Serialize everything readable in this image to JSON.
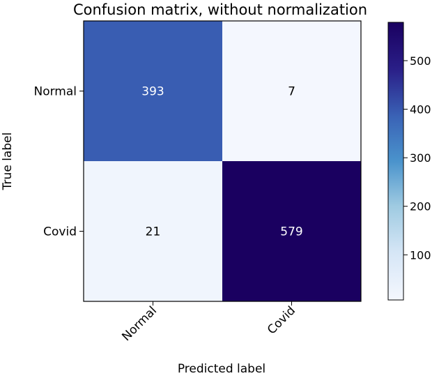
{
  "chart_data": {
    "type": "heatmap",
    "title": "Confusion matrix, without normalization",
    "xlabel": "Predicted label",
    "ylabel": "True label",
    "x_categories": [
      "Normal",
      "Covid"
    ],
    "y_categories": [
      "Normal",
      "Covid"
    ],
    "values": [
      [
        393,
        7
      ],
      [
        21,
        579
      ]
    ],
    "colormap": "Blues-Purples",
    "colorbar": {
      "min": 7,
      "max": 579,
      "ticks": [
        100,
        200,
        300,
        400,
        500
      ]
    },
    "text_color_dark": "#000000",
    "text_color_light": "#ffffff"
  }
}
